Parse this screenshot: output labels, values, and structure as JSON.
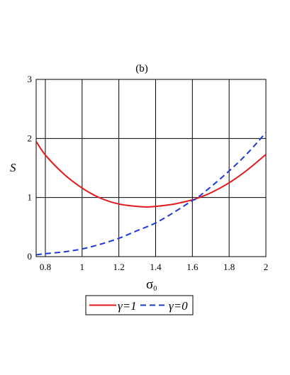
{
  "chart_data": {
    "type": "line",
    "title": "(b)",
    "xlabel": "σ",
    "xlabel_sub": "0",
    "ylabel": "S",
    "xlim": [
      0.75,
      2.0
    ],
    "ylim": [
      0,
      3
    ],
    "xticks": [
      0.8,
      1,
      1.2,
      1.4,
      1.6,
      1.8,
      2
    ],
    "xtick_labels": [
      "0.8",
      "1",
      "1.2",
      "1.4",
      "1.6",
      "1.8",
      "2"
    ],
    "yticks": [
      0,
      1,
      2,
      3
    ],
    "ytick_labels": [
      "0",
      "1",
      "2",
      "3"
    ],
    "grid": true,
    "legend_position": "bottom-center",
    "series": [
      {
        "name": "γ=1",
        "color": "#e31a1c",
        "style": "solid",
        "x": [
          0.75,
          0.8,
          0.9,
          1.0,
          1.1,
          1.2,
          1.3,
          1.35,
          1.4,
          1.5,
          1.6,
          1.62,
          1.7,
          1.8,
          1.9,
          2.0
        ],
        "y": [
          1.95,
          1.72,
          1.4,
          1.16,
          0.99,
          0.89,
          0.85,
          0.84,
          0.85,
          0.89,
          0.96,
          0.98,
          1.08,
          1.25,
          1.47,
          1.73
        ]
      },
      {
        "name": "γ=0",
        "color": "#1f3ad6",
        "style": "dashed",
        "x": [
          0.75,
          0.8,
          0.9,
          1.0,
          1.1,
          1.2,
          1.3,
          1.4,
          1.5,
          1.6,
          1.62,
          1.7,
          1.8,
          1.9,
          2.0
        ],
        "y": [
          0.03,
          0.05,
          0.08,
          0.13,
          0.21,
          0.31,
          0.44,
          0.57,
          0.75,
          0.95,
          0.98,
          1.18,
          1.45,
          1.75,
          2.1
        ]
      }
    ]
  }
}
